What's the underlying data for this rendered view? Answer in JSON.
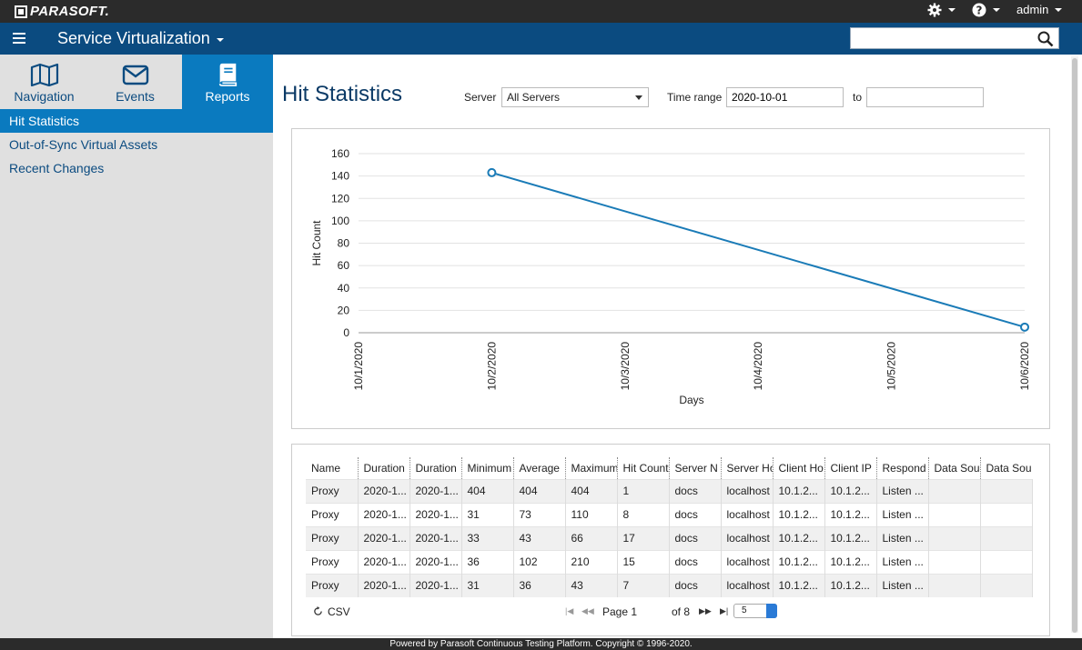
{
  "brand": {
    "logo_text": "PARASOFT."
  },
  "topbar": {
    "user": "admin",
    "icons": [
      "gear-icon",
      "help-icon"
    ]
  },
  "appbar": {
    "title": "Service Virtualization",
    "search_value": ""
  },
  "sidebar": {
    "tabs": [
      {
        "label": "Navigation",
        "icon": "map-icon"
      },
      {
        "label": "Events",
        "icon": "envelope-icon"
      },
      {
        "label": "Reports",
        "icon": "book-icon",
        "active": true
      }
    ],
    "items": [
      {
        "label": "Hit Statistics",
        "active": true
      },
      {
        "label": "Out-of-Sync Virtual Assets"
      },
      {
        "label": "Recent Changes"
      }
    ]
  },
  "main": {
    "title": "Hit Statistics",
    "server_label": "Server",
    "server_value": "All Servers",
    "time_range_label": "Time range",
    "time_from": "2020-10-01",
    "to_label": "to",
    "time_to": ""
  },
  "chart_data": {
    "type": "line",
    "title": "",
    "xlabel": "Days",
    "ylabel": "Hit Count",
    "categories": [
      "10/1/2020",
      "10/2/2020",
      "10/3/2020",
      "10/4/2020",
      "10/5/2020",
      "10/6/2020"
    ],
    "y_ticks": [
      0,
      20,
      40,
      60,
      80,
      100,
      120,
      140,
      160
    ],
    "ylim": [
      0,
      160
    ],
    "grid": true,
    "series": [
      {
        "points": [
          {
            "x": "10/2/2020",
            "y": 143
          },
          {
            "x": "10/6/2020",
            "y": 5
          }
        ]
      }
    ],
    "color": "#1a7bb7"
  },
  "table": {
    "columns": [
      "Name",
      "Duration",
      "Duration",
      "Minimum",
      "Average",
      "Maximum",
      "Hit Count",
      "Server N",
      "Server Ho",
      "Client Ho",
      "Client IP",
      "Respond",
      "Data Sou",
      "Data Sou"
    ],
    "rows": [
      [
        "Proxy",
        "2020-1...",
        "2020-1...",
        "404",
        "404",
        "404",
        "1",
        "docs",
        "localhost",
        "10.1.2...",
        "10.1.2...",
        "Listen ...",
        "",
        ""
      ],
      [
        "Proxy",
        "2020-1...",
        "2020-1...",
        "31",
        "73",
        "110",
        "8",
        "docs",
        "localhost",
        "10.1.2...",
        "10.1.2...",
        "Listen ...",
        "",
        ""
      ],
      [
        "Proxy",
        "2020-1...",
        "2020-1...",
        "33",
        "43",
        "66",
        "17",
        "docs",
        "localhost",
        "10.1.2...",
        "10.1.2...",
        "Listen ...",
        "",
        ""
      ],
      [
        "Proxy",
        "2020-1...",
        "2020-1...",
        "36",
        "102",
        "210",
        "15",
        "docs",
        "localhost",
        "10.1.2...",
        "10.1.2...",
        "Listen ...",
        "",
        ""
      ],
      [
        "Proxy",
        "2020-1...",
        "2020-1...",
        "31",
        "36",
        "43",
        "7",
        "docs",
        "localhost",
        "10.1.2...",
        "10.1.2...",
        "Listen ...",
        "",
        ""
      ]
    ]
  },
  "pager": {
    "csv_label": "CSV",
    "page_label": "Page 1",
    "of_label": "of 8",
    "page_size": "5"
  },
  "footer": {
    "text": "Powered by Parasoft Continuous Testing Platform. Copyright © 1996-2020."
  }
}
